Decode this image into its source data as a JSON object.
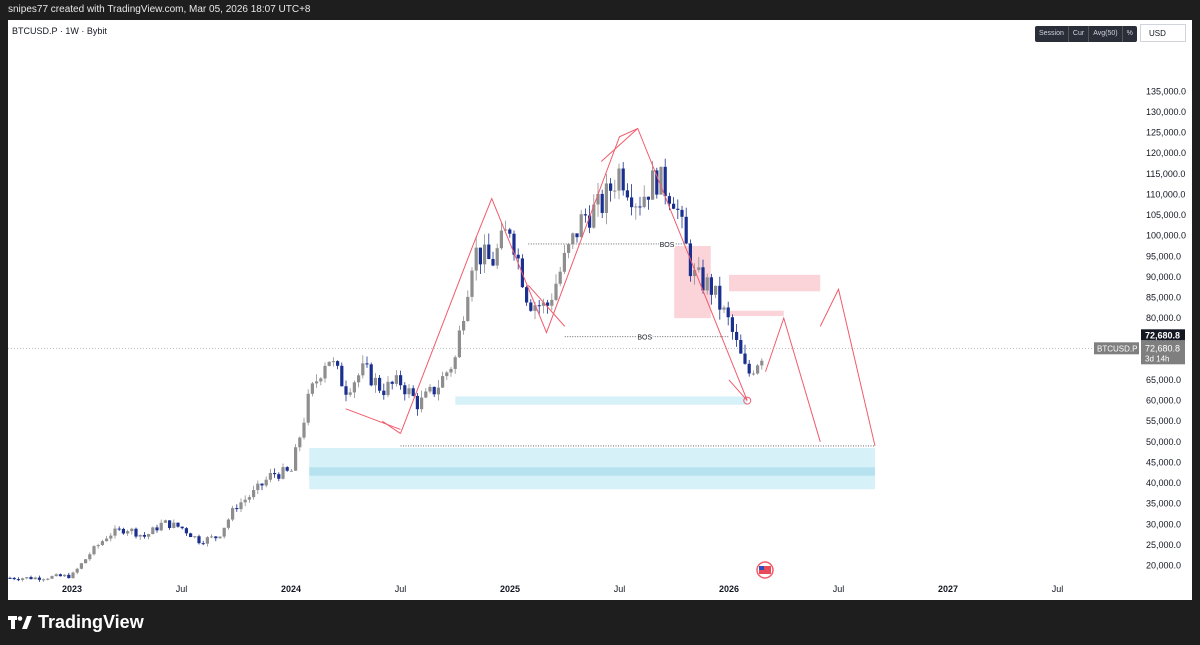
{
  "header": {
    "caption": "snipes77 created with TradingView.com, Mar 05, 2026 18:07 UTC+8"
  },
  "symbol": {
    "title": "BTCUSD.P · 1W · Bybit"
  },
  "toolbar": {
    "items": [
      "Session",
      "Cur",
      "Avg(50)",
      "%"
    ]
  },
  "currency": "USD",
  "brand": "TradingView",
  "colors": {
    "up": "#8e8e8e",
    "down": "#1a2f8f",
    "drawing": "#f15b6c",
    "supply": "#f9c5cc",
    "demand": "#c8ecf5"
  },
  "chart_data": {
    "type": "candlestick",
    "symbol": "BTCUSD.P",
    "interval": "1W",
    "exchange": "Bybit",
    "ylim": [
      18000,
      135000
    ],
    "y_ticks": [
      "135,000.0",
      "130,000.0",
      "125,000.0",
      "120,000.0",
      "115,000.0",
      "110,000.0",
      "105,000.0",
      "100,000.0",
      "95,000.0",
      "90,000.0",
      "85,000.0",
      "80,000.0",
      "75,000.0",
      "70,000.0",
      "65,000.0",
      "60,000.0",
      "55,000.0",
      "50,000.0",
      "45,000.0",
      "40,000.0",
      "35,000.0",
      "30,000.0",
      "25,000.0",
      "20,000.0"
    ],
    "x_ticks": [
      {
        "label": "2023",
        "bold": true,
        "date": "2023-01"
      },
      {
        "label": "Jul",
        "bold": false,
        "date": "2023-07"
      },
      {
        "label": "2024",
        "bold": true,
        "date": "2024-01"
      },
      {
        "label": "Jul",
        "bold": false,
        "date": "2024-07"
      },
      {
        "label": "2025",
        "bold": true,
        "date": "2025-01"
      },
      {
        "label": "Jul",
        "bold": false,
        "date": "2025-07"
      },
      {
        "label": "2026",
        "bold": true,
        "date": "2026-01"
      },
      {
        "label": "Jul",
        "bold": false,
        "date": "2026-07"
      },
      {
        "label": "2027",
        "bold": true,
        "date": "2027-01"
      },
      {
        "label": "Jul",
        "bold": false,
        "date": "2027-07"
      }
    ],
    "price_label": {
      "symbol": "BTCUSD.P",
      "price": "72,680.8",
      "countdown": "3d 14h",
      "value": 72680.8
    },
    "closes": [
      {
        "date": "2022-11",
        "value": 17000
      },
      {
        "date": "2023-01",
        "value": 17500
      },
      {
        "date": "2023-02",
        "value": 23000
      },
      {
        "date": "2023-03",
        "value": 27500
      },
      {
        "date": "2023-04",
        "value": 29000
      },
      {
        "date": "2023-05",
        "value": 27000
      },
      {
        "date": "2023-06",
        "value": 30400
      },
      {
        "date": "2023-07",
        "value": 29200
      },
      {
        "date": "2023-08",
        "value": 26000
      },
      {
        "date": "2023-09",
        "value": 27000
      },
      {
        "date": "2023-10",
        "value": 34500
      },
      {
        "date": "2023-11",
        "value": 37700
      },
      {
        "date": "2023-12",
        "value": 42300
      },
      {
        "date": "2024-01",
        "value": 42500
      },
      {
        "date": "2024-02",
        "value": 61000
      },
      {
        "date": "2024-03",
        "value": 71000
      },
      {
        "date": "2024-04",
        "value": 63000
      },
      {
        "date": "2024-05",
        "value": 67500
      },
      {
        "date": "2024-06",
        "value": 62700
      },
      {
        "date": "2024-07",
        "value": 64500
      },
      {
        "date": "2024-08",
        "value": 59000
      },
      {
        "date": "2024-09",
        "value": 63300
      },
      {
        "date": "2024-10",
        "value": 70200
      },
      {
        "date": "2024-11",
        "value": 96400
      },
      {
        "date": "2024-12",
        "value": 93400
      },
      {
        "date": "2025-01",
        "value": 102400
      },
      {
        "date": "2025-02",
        "value": 84300
      },
      {
        "date": "2025-03",
        "value": 82500
      },
      {
        "date": "2025-04",
        "value": 94200
      },
      {
        "date": "2025-05",
        "value": 104600
      },
      {
        "date": "2025-06",
        "value": 107100
      },
      {
        "date": "2025-07",
        "value": 115800
      },
      {
        "date": "2025-08",
        "value": 108200
      },
      {
        "date": "2025-09",
        "value": 114000
      },
      {
        "date": "2025-10",
        "value": 109500
      },
      {
        "date": "2025-11",
        "value": 90400
      },
      {
        "date": "2025-12",
        "value": 87500
      },
      {
        "date": "2026-01",
        "value": 78700
      },
      {
        "date": "2026-02",
        "value": 66000
      },
      {
        "date": "2026-03",
        "value": 72680
      }
    ],
    "annotations": [
      {
        "type": "text",
        "label": "BOS",
        "value": 98000
      },
      {
        "type": "text",
        "label": "BOS",
        "value": 75500
      }
    ]
  }
}
